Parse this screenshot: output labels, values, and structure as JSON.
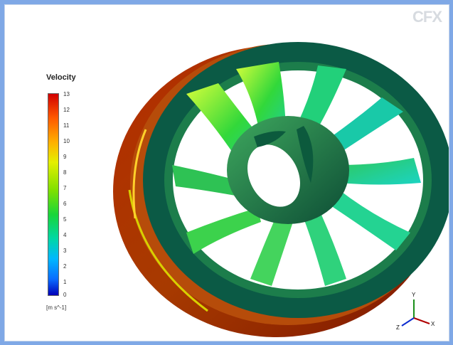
{
  "viewer": {
    "logo_text": "CFX",
    "legend": {
      "title": "Velocity",
      "ticks": [
        "13",
        "12",
        "11",
        "10",
        "9",
        "8",
        "7",
        "6",
        "5",
        "4",
        "3",
        "2",
        "1",
        "0"
      ],
      "unit": "[m s^-1]"
    },
    "triad_labels": {
      "y": "Y",
      "z": "Z",
      "x": "X"
    }
  },
  "colors": {
    "legend_top": "#d10000",
    "legend_bottom": "#0000b8",
    "runner_dark": "#0b5a45",
    "runner_red": "#8f1b00"
  }
}
